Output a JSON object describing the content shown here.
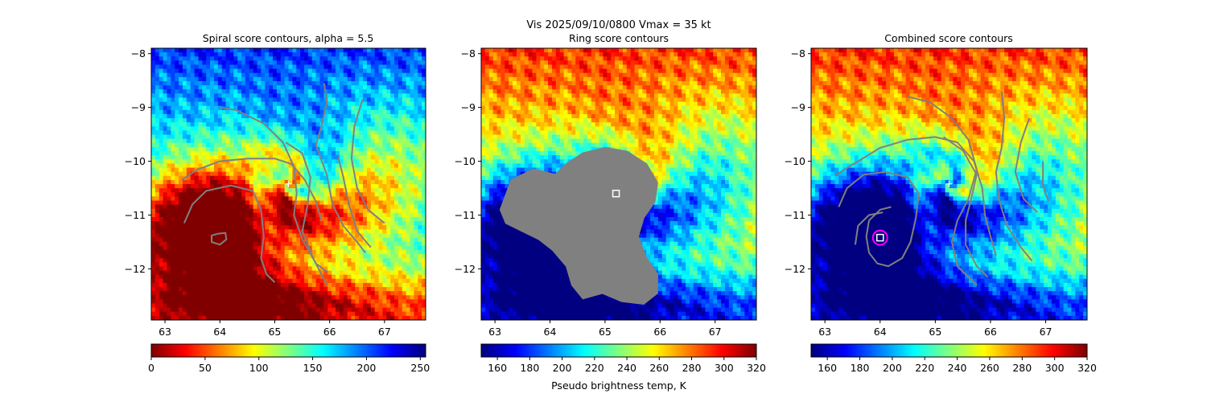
{
  "suptitle": {
    "line1": "Vis  2025/09/10/0800    Vmax = 35 kt"
  },
  "colormap": "jet",
  "chart_data": [
    {
      "type": "heatmap",
      "title": "Spiral score contours, alpha =  5.5",
      "xlim": [
        62.75,
        67.75
      ],
      "ylim": [
        -12.95,
        -7.9
      ],
      "xticks": [
        "63",
        "64",
        "65",
        "66",
        "67"
      ],
      "yticks": [
        "−8",
        "−9",
        "−10",
        "−11",
        "−12"
      ],
      "colorbar": {
        "vmin": 0,
        "vmax": 255,
        "reversed_jet": true,
        "ticks": [
          "0",
          "50",
          "100",
          "150",
          "200",
          "250"
        ],
        "label": ""
      },
      "markers": [
        {
          "kind": "plus",
          "x": 65.25,
          "y": -10.42,
          "color": "#ffffff"
        }
      ],
      "contours": [
        {
          "color": "#808080",
          "points": [
            [
              63.3,
              -10.35
            ],
            [
              63.6,
              -10.15
            ],
            [
              64.0,
              -10.0
            ],
            [
              64.5,
              -9.95
            ],
            [
              65.0,
              -9.95
            ],
            [
              65.3,
              -10.05
            ],
            [
              65.55,
              -10.35
            ],
            [
              65.75,
              -10.75
            ],
            [
              65.85,
              -11.1
            ]
          ]
        },
        {
          "color": "#808080",
          "points": [
            [
              63.35,
              -11.15
            ],
            [
              63.5,
              -10.8
            ],
            [
              63.75,
              -10.55
            ],
            [
              64.2,
              -10.45
            ],
            [
              64.6,
              -10.55
            ],
            [
              64.75,
              -10.9
            ],
            [
              64.8,
              -11.4
            ],
            [
              64.75,
              -11.8
            ],
            [
              64.85,
              -12.1
            ],
            [
              65.0,
              -12.25
            ]
          ]
        },
        {
          "color": "#808080",
          "points": [
            [
              63.95,
              -11.35
            ],
            [
              64.1,
              -11.33
            ],
            [
              64.12,
              -11.45
            ],
            [
              64.0,
              -11.55
            ],
            [
              63.85,
              -11.5
            ],
            [
              63.85,
              -11.38
            ],
            [
              63.95,
              -11.35
            ]
          ]
        },
        {
          "color": "#808080",
          "points": [
            [
              64.0,
              -9.0
            ],
            [
              64.3,
              -9.05
            ],
            [
              64.8,
              -9.3
            ],
            [
              65.15,
              -9.65
            ],
            [
              65.35,
              -10.1
            ],
            [
              65.4,
              -10.6
            ],
            [
              65.35,
              -11.0
            ],
            [
              65.5,
              -11.45
            ],
            [
              65.75,
              -11.9
            ],
            [
              65.95,
              -12.05
            ]
          ]
        },
        {
          "color": "#808080",
          "points": [
            [
              65.2,
              -9.65
            ],
            [
              65.5,
              -9.85
            ],
            [
              65.65,
              -10.3
            ],
            [
              65.6,
              -10.8
            ],
            [
              65.5,
              -11.3
            ],
            [
              65.7,
              -11.8
            ],
            [
              65.9,
              -12.2
            ],
            [
              65.95,
              -12.3
            ]
          ]
        },
        {
          "color": "#808080",
          "points": [
            [
              65.9,
              -8.55
            ],
            [
              65.95,
              -8.9
            ],
            [
              65.85,
              -9.35
            ],
            [
              65.75,
              -9.7
            ],
            [
              65.95,
              -10.25
            ],
            [
              66.05,
              -10.8
            ],
            [
              66.25,
              -11.2
            ],
            [
              66.5,
              -11.5
            ],
            [
              66.65,
              -11.7
            ]
          ]
        },
        {
          "color": "#808080",
          "points": [
            [
              66.6,
              -8.85
            ],
            [
              66.45,
              -9.35
            ],
            [
              66.4,
              -9.95
            ],
            [
              66.5,
              -10.5
            ],
            [
              66.7,
              -10.9
            ],
            [
              67.0,
              -11.15
            ]
          ]
        },
        {
          "color": "#808080",
          "points": [
            [
              66.15,
              -9.9
            ],
            [
              66.25,
              -10.3
            ],
            [
              66.35,
              -10.8
            ],
            [
              66.5,
              -11.3
            ],
            [
              66.75,
              -11.6
            ]
          ]
        }
      ]
    },
    {
      "type": "heatmap",
      "title": "Ring score contours",
      "xlim": [
        62.75,
        67.75
      ],
      "ylim": [
        -12.95,
        -7.9
      ],
      "xticks": [
        "63",
        "64",
        "65",
        "66",
        "67"
      ],
      "yticks": [
        "−8",
        "−9",
        "−10",
        "−11",
        "−12"
      ],
      "colorbar": {
        "vmin": 150,
        "vmax": 320,
        "reversed_jet": false,
        "ticks": [
          "160",
          "180",
          "200",
          "220",
          "240",
          "260",
          "280",
          "300",
          "320"
        ],
        "label": "Pseudo brightness temp, K"
      },
      "markers": [
        {
          "kind": "square",
          "x": 65.2,
          "y": -10.6,
          "color": "#ffffff"
        }
      ],
      "contours": [
        {
          "color": "#808080",
          "filled": true,
          "points": [
            [
              63.1,
              -10.9
            ],
            [
              63.3,
              -10.35
            ],
            [
              63.7,
              -10.15
            ],
            [
              64.1,
              -10.25
            ],
            [
              64.3,
              -10.05
            ],
            [
              64.6,
              -9.85
            ],
            [
              65.0,
              -9.75
            ],
            [
              65.4,
              -9.82
            ],
            [
              65.75,
              -10.05
            ],
            [
              65.95,
              -10.4
            ],
            [
              65.9,
              -10.75
            ],
            [
              65.7,
              -11.05
            ],
            [
              65.6,
              -11.4
            ],
            [
              65.75,
              -11.8
            ],
            [
              65.95,
              -12.1
            ],
            [
              65.95,
              -12.45
            ],
            [
              65.7,
              -12.65
            ],
            [
              65.3,
              -12.6
            ],
            [
              64.95,
              -12.45
            ],
            [
              64.6,
              -12.55
            ],
            [
              64.4,
              -12.3
            ],
            [
              64.3,
              -11.95
            ],
            [
              64.05,
              -11.65
            ],
            [
              63.8,
              -11.45
            ],
            [
              63.5,
              -11.3
            ],
            [
              63.2,
              -11.15
            ]
          ]
        }
      ]
    },
    {
      "type": "heatmap",
      "title": "Combined score contours",
      "xlim": [
        62.75,
        67.75
      ],
      "ylim": [
        -12.95,
        -7.9
      ],
      "xticks": [
        "63",
        "64",
        "65",
        "66",
        "67"
      ],
      "yticks": [
        "−8",
        "−9",
        "−10",
        "−11",
        "−12"
      ],
      "colorbar": {
        "vmin": 150,
        "vmax": 320,
        "reversed_jet": false,
        "ticks": [
          "160",
          "180",
          "200",
          "220",
          "240",
          "260",
          "280",
          "300",
          "320"
        ],
        "label": ""
      },
      "markers": [
        {
          "kind": "plus",
          "x": 65.25,
          "y": -10.42,
          "color": "#ffffff"
        },
        {
          "kind": "circle",
          "x": 64.0,
          "y": -11.42,
          "color": "#ff00ff"
        },
        {
          "kind": "square",
          "x": 64.0,
          "y": -11.42,
          "color": "#ffffff"
        }
      ],
      "contours": [
        {
          "color": "#808080",
          "points": [
            [
              63.2,
              -10.25
            ],
            [
              63.6,
              -10.0
            ],
            [
              64.0,
              -9.75
            ],
            [
              64.5,
              -9.6
            ],
            [
              65.0,
              -9.55
            ],
            [
              65.4,
              -9.65
            ],
            [
              65.7,
              -10.0
            ],
            [
              65.85,
              -10.5
            ],
            [
              65.9,
              -11.0
            ],
            [
              66.0,
              -11.4
            ],
            [
              66.1,
              -11.75
            ]
          ]
        },
        {
          "color": "#808080",
          "points": [
            [
              63.25,
              -10.85
            ],
            [
              63.4,
              -10.5
            ],
            [
              63.7,
              -10.25
            ],
            [
              64.1,
              -10.2
            ],
            [
              64.5,
              -10.3
            ],
            [
              64.7,
              -10.6
            ],
            [
              64.65,
              -11.05
            ],
            [
              64.55,
              -11.5
            ],
            [
              64.4,
              -11.8
            ],
            [
              64.15,
              -11.95
            ],
            [
              63.95,
              -11.9
            ],
            [
              63.8,
              -11.7
            ],
            [
              63.75,
              -11.4
            ],
            [
              63.8,
              -11.1
            ],
            [
              64.0,
              -10.9
            ],
            [
              64.2,
              -10.85
            ]
          ]
        },
        {
          "color": "#808080",
          "points": [
            [
              63.55,
              -11.55
            ],
            [
              63.6,
              -11.2
            ],
            [
              63.8,
              -11.0
            ],
            [
              64.05,
              -10.95
            ]
          ]
        },
        {
          "color": "#808080",
          "points": [
            [
              64.5,
              -8.8
            ],
            [
              64.9,
              -8.9
            ],
            [
              65.3,
              -9.2
            ],
            [
              65.6,
              -9.6
            ],
            [
              65.75,
              -10.15
            ],
            [
              65.6,
              -10.7
            ],
            [
              65.4,
              -11.1
            ],
            [
              65.3,
              -11.5
            ],
            [
              65.4,
              -11.95
            ],
            [
              65.6,
              -12.15
            ],
            [
              65.75,
              -12.3
            ]
          ]
        },
        {
          "color": "#808080",
          "points": [
            [
              65.15,
              -9.55
            ],
            [
              65.5,
              -9.8
            ],
            [
              65.75,
              -10.25
            ],
            [
              65.65,
              -10.7
            ],
            [
              65.55,
              -11.1
            ],
            [
              65.55,
              -11.55
            ],
            [
              65.75,
              -11.95
            ],
            [
              65.95,
              -12.15
            ]
          ]
        },
        {
          "color": "#808080",
          "points": [
            [
              66.2,
              -8.7
            ],
            [
              66.25,
              -9.2
            ],
            [
              66.2,
              -9.75
            ],
            [
              66.1,
              -10.2
            ],
            [
              66.15,
              -10.7
            ],
            [
              66.3,
              -11.2
            ],
            [
              66.55,
              -11.6
            ],
            [
              66.75,
              -11.85
            ]
          ]
        },
        {
          "color": "#808080",
          "points": [
            [
              66.7,
              -9.2
            ],
            [
              66.55,
              -9.65
            ],
            [
              66.45,
              -10.2
            ],
            [
              66.6,
              -10.7
            ],
            [
              66.85,
              -10.95
            ]
          ]
        },
        {
          "color": "#808080",
          "points": [
            [
              66.95,
              -10.0
            ],
            [
              66.95,
              -10.45
            ],
            [
              67.05,
              -10.75
            ]
          ]
        }
      ]
    }
  ]
}
